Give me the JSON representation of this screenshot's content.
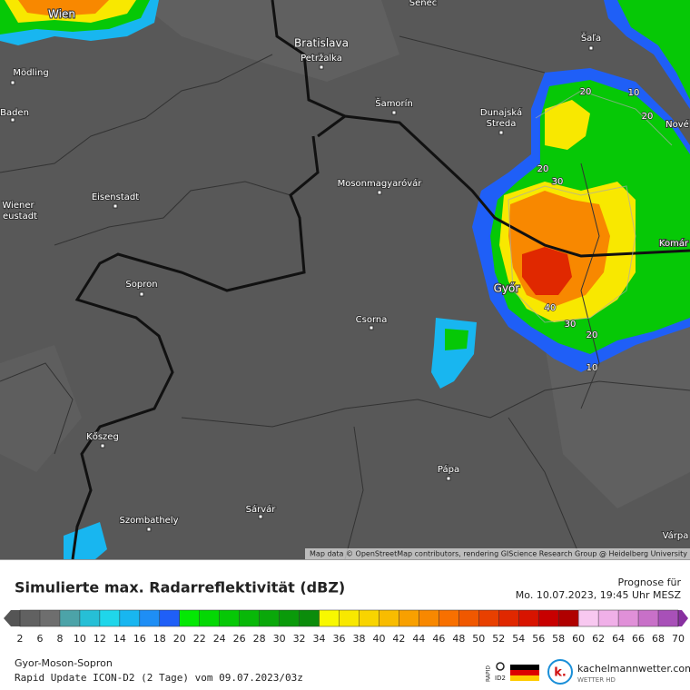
{
  "map": {
    "cities": [
      "Senec",
      "Wien",
      "Bratislava",
      "Petržalka",
      "Šaľa",
      "Mödling",
      "Baden",
      "Šamorín",
      "Dunajská",
      "Streda",
      "Nové",
      "Eisenstadt",
      "Wiener",
      "eustadt",
      "Mosonmagyaróvár",
      "Komár",
      "Sopron",
      "Győr",
      "Csorna",
      "Kőszeg",
      "Pápa",
      "Sárvár",
      "Szombathely",
      "Várpa"
    ],
    "contour_labels": [
      20,
      10,
      20,
      20,
      30,
      40,
      30,
      20,
      10
    ],
    "attribution": "Map data © OpenStreetMap contributors, rendering GIScience Research Group @ Heidelberg University"
  },
  "legend": {
    "title": "Simulierte max. Radarreflektivität (dBZ)",
    "forecast_label": "Prognose für",
    "forecast_time": "Mo. 10.07.2023, 19:45 Uhr MESZ",
    "ticks": [
      2,
      6,
      8,
      10,
      12,
      14,
      16,
      18,
      20,
      22,
      24,
      26,
      28,
      30,
      32,
      34,
      36,
      38,
      40,
      42,
      44,
      46,
      48,
      50,
      52,
      54,
      56,
      58,
      60,
      62,
      64,
      66,
      68,
      70
    ],
    "colors": [
      "#555555",
      "#616161",
      "#6e6e6e",
      "#4ca3a8",
      "#26bfd6",
      "#1fd6ea",
      "#18b6f0",
      "#1e8ef5",
      "#1f5ff7",
      "#04e804",
      "#04d804",
      "#06c806",
      "#08b808",
      "#0aa80a",
      "#0a9a0a",
      "#0b8c0b",
      "#f8f800",
      "#f8e800",
      "#f8d400",
      "#f8bc00",
      "#f8a000",
      "#f88800",
      "#f87000",
      "#f05800",
      "#e84000",
      "#e02800",
      "#d81400",
      "#c80000",
      "#b00000",
      "#f8c8f0",
      "#f0b0e8",
      "#e090d8",
      "#c870c8",
      "#a850b8",
      "#8830a0"
    ]
  },
  "footer": {
    "region": "Gyor-Moson-Sopron",
    "model": "Rapid Update ICON-D2 (2 Tage) vom 09.07.2023/03z",
    "logo_rapid": "RAPID",
    "logo_id2": "ID2",
    "brand": "kachelmannwetter.com",
    "brand_sub": "WETTER HD",
    "brand_mark": "k."
  }
}
